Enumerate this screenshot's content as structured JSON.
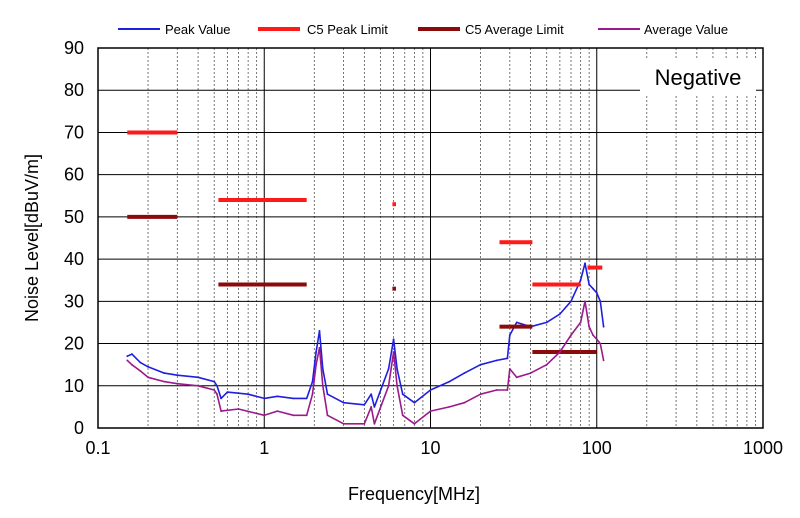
{
  "chart_data": {
    "type": "line",
    "title": "",
    "xlabel": "Frequency[MHz]",
    "ylabel": "Noise Level[dBuV/m]",
    "xscale": "log",
    "xlim": [
      0.1,
      1000
    ],
    "ylim": [
      0,
      90
    ],
    "x_ticks": [
      {
        "value": 0.1,
        "label": "0.1"
      },
      {
        "value": 1,
        "label": "1"
      },
      {
        "value": 10,
        "label": "10"
      },
      {
        "value": 100,
        "label": "100"
      },
      {
        "value": 1000,
        "label": "1000"
      }
    ],
    "y_ticks": [
      {
        "value": 0,
        "label": "0"
      },
      {
        "value": 10,
        "label": "10"
      },
      {
        "value": 20,
        "label": "20"
      },
      {
        "value": 30,
        "label": "30"
      },
      {
        "value": 40,
        "label": "40"
      },
      {
        "value": 50,
        "label": "50"
      },
      {
        "value": 60,
        "label": "60"
      },
      {
        "value": 70,
        "label": "70"
      },
      {
        "value": 80,
        "label": "80"
      },
      {
        "value": 90,
        "label": "90"
      }
    ],
    "grid": true,
    "legend_position": "top",
    "annotation": "Negative",
    "series": [
      {
        "name": "Peak Value",
        "color": "#1f1fe0",
        "kind": "line",
        "points": [
          [
            0.15,
            17
          ],
          [
            0.16,
            17.5
          ],
          [
            0.18,
            15.5
          ],
          [
            0.2,
            14.5
          ],
          [
            0.25,
            13
          ],
          [
            0.3,
            12.5
          ],
          [
            0.4,
            12
          ],
          [
            0.5,
            11
          ],
          [
            0.52,
            10
          ],
          [
            0.55,
            7
          ],
          [
            0.6,
            8.5
          ],
          [
            0.8,
            8
          ],
          [
            1.0,
            7
          ],
          [
            1.2,
            7.5
          ],
          [
            1.5,
            7
          ],
          [
            1.8,
            7
          ],
          [
            1.95,
            11
          ],
          [
            2.05,
            18
          ],
          [
            2.15,
            23
          ],
          [
            2.25,
            14
          ],
          [
            2.4,
            8
          ],
          [
            3.0,
            6
          ],
          [
            4.0,
            5.5
          ],
          [
            4.4,
            8
          ],
          [
            4.6,
            5
          ],
          [
            5.6,
            14
          ],
          [
            6.0,
            21
          ],
          [
            6.3,
            14
          ],
          [
            6.8,
            8
          ],
          [
            8,
            6
          ],
          [
            10,
            9
          ],
          [
            13,
            11
          ],
          [
            16,
            13
          ],
          [
            20,
            15
          ],
          [
            25,
            16
          ],
          [
            29,
            16.5
          ],
          [
            30,
            22
          ],
          [
            33,
            25
          ],
          [
            40,
            24
          ],
          [
            50,
            25
          ],
          [
            60,
            27
          ],
          [
            70,
            30
          ],
          [
            80,
            35
          ],
          [
            85,
            39
          ],
          [
            90,
            34
          ],
          [
            95,
            33
          ],
          [
            100,
            32
          ],
          [
            105,
            30
          ],
          [
            110,
            24
          ]
        ]
      },
      {
        "name": "C5 Peak Limit",
        "color": "#ff1a1a",
        "kind": "segments",
        "segments": [
          [
            0.15,
            0.3,
            70
          ],
          [
            0.53,
            1.8,
            54
          ],
          [
            5.9,
            6.2,
            53
          ],
          [
            26,
            30,
            44
          ],
          [
            30,
            41,
            44
          ],
          [
            41,
            80,
            34
          ],
          [
            88,
            108,
            38
          ]
        ]
      },
      {
        "name": "C5 Average Limit",
        "color": "#8b0a0a",
        "kind": "segments",
        "segments": [
          [
            0.15,
            0.3,
            50
          ],
          [
            0.53,
            1.8,
            34
          ],
          [
            5.9,
            6.2,
            33
          ],
          [
            26,
            30,
            24
          ],
          [
            30,
            41,
            24
          ],
          [
            41,
            80,
            18
          ],
          [
            80,
            100,
            18
          ]
        ]
      },
      {
        "name": "Average Value",
        "color": "#9b1a8c",
        "kind": "line",
        "points": [
          [
            0.15,
            16
          ],
          [
            0.16,
            15
          ],
          [
            0.18,
            13.5
          ],
          [
            0.2,
            12
          ],
          [
            0.25,
            11
          ],
          [
            0.3,
            10.5
          ],
          [
            0.4,
            10
          ],
          [
            0.5,
            9
          ],
          [
            0.52,
            8
          ],
          [
            0.55,
            4
          ],
          [
            0.7,
            4.5
          ],
          [
            1.0,
            3
          ],
          [
            1.2,
            4
          ],
          [
            1.5,
            3
          ],
          [
            1.8,
            3
          ],
          [
            1.95,
            8
          ],
          [
            2.05,
            15
          ],
          [
            2.15,
            19
          ],
          [
            2.25,
            10
          ],
          [
            2.4,
            3
          ],
          [
            3.0,
            1
          ],
          [
            4.0,
            1
          ],
          [
            4.4,
            5
          ],
          [
            4.6,
            1
          ],
          [
            5.6,
            10
          ],
          [
            6.0,
            18
          ],
          [
            6.3,
            10
          ],
          [
            6.8,
            3
          ],
          [
            8,
            1
          ],
          [
            10,
            4
          ],
          [
            13,
            5
          ],
          [
            16,
            6
          ],
          [
            20,
            8
          ],
          [
            25,
            9
          ],
          [
            29,
            9
          ],
          [
            30,
            14
          ],
          [
            33,
            12
          ],
          [
            40,
            13
          ],
          [
            50,
            15
          ],
          [
            60,
            18
          ],
          [
            70,
            22
          ],
          [
            80,
            25
          ],
          [
            85,
            30
          ],
          [
            90,
            24
          ],
          [
            95,
            22
          ],
          [
            100,
            21
          ],
          [
            105,
            20
          ],
          [
            110,
            16
          ]
        ]
      }
    ]
  }
}
